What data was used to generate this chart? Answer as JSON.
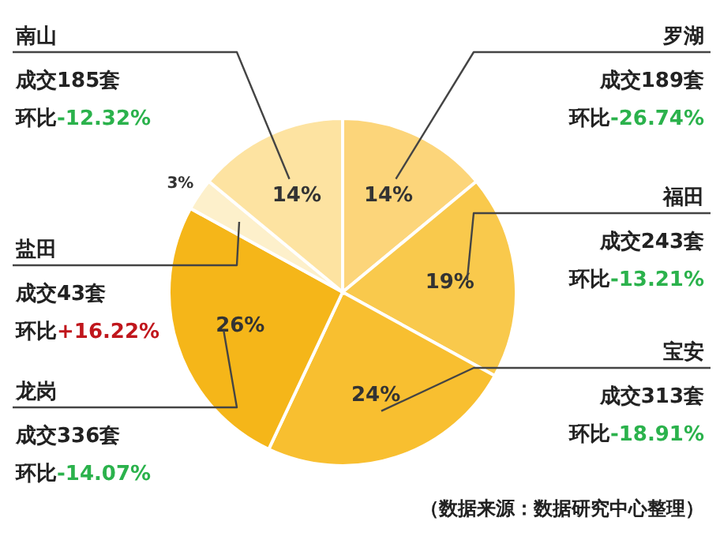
{
  "chart_data": {
    "type": "pie",
    "categories": [
      "罗湖",
      "福田",
      "宝安",
      "龙岗",
      "盐田",
      "南山"
    ],
    "values": [
      14,
      19,
      24,
      26,
      3,
      14
    ],
    "colors": [
      "#fcd57a",
      "#f9c94c",
      "#f8bf30",
      "#f5b619",
      "#fdf0cb",
      "#fde3a1"
    ],
    "value_labels": [
      "14%",
      "19%",
      "24%",
      "26%",
      "3%",
      "14%"
    ],
    "annotations": [
      "成交189套",
      "环比",
      "-26.74%",
      "成交243套",
      "环比",
      "-13.21%",
      "成交313套",
      "环比",
      "-18.91%",
      "成交336套",
      "环比",
      "-14.07%",
      "成交43套",
      "环比",
      "+16.22%",
      "成交185套",
      "环比",
      "-12.32%",
      "（数据来源：数据研究中心整理）"
    ]
  }
}
